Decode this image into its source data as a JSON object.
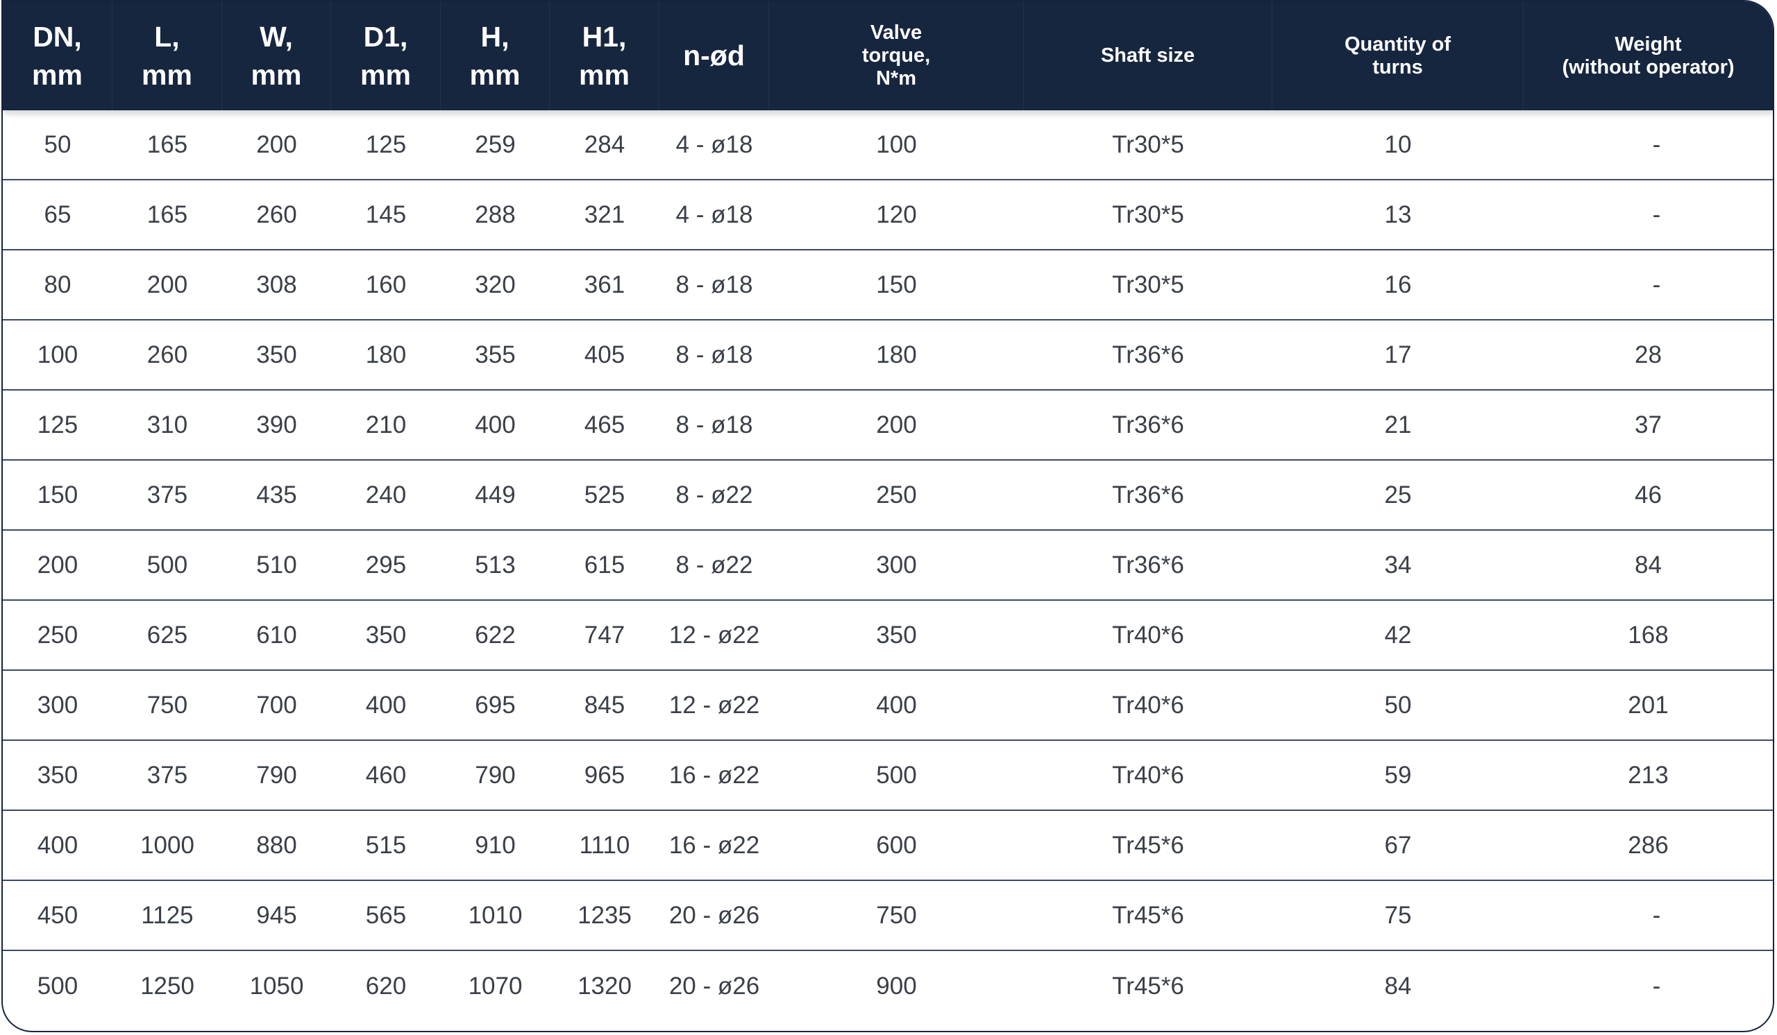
{
  "table": {
    "headers": [
      "DN,\nmm",
      "L,\nmm",
      "W,\nmm",
      "D1,\nmm",
      "H,\nmm",
      "H1,\nmm",
      "n-ød",
      "Valve\ntorque,\nN*m",
      "Shaft size",
      "Quantity of\nturns",
      "Weight\n(without operator)"
    ],
    "rows": [
      [
        "50",
        "165",
        "200",
        "125",
        "259",
        "284",
        "4 - ø18",
        "100",
        "Tr30*5",
        "10",
        "-"
      ],
      [
        "65",
        "165",
        "260",
        "145",
        "288",
        "321",
        "4 - ø18",
        "120",
        "Tr30*5",
        "13",
        "-"
      ],
      [
        "80",
        "200",
        "308",
        "160",
        "320",
        "361",
        "8 - ø18",
        "150",
        "Tr30*5",
        "16",
        "-"
      ],
      [
        "100",
        "260",
        "350",
        "180",
        "355",
        "405",
        "8 - ø18",
        "180",
        "Tr36*6",
        "17",
        "28"
      ],
      [
        "125",
        "310",
        "390",
        "210",
        "400",
        "465",
        "8 - ø18",
        "200",
        "Tr36*6",
        "21",
        "37"
      ],
      [
        "150",
        "375",
        "435",
        "240",
        "449",
        "525",
        "8 - ø22",
        "250",
        "Tr36*6",
        "25",
        "46"
      ],
      [
        "200",
        "500",
        "510",
        "295",
        "513",
        "615",
        "8 - ø22",
        "300",
        "Tr36*6",
        "34",
        "84"
      ],
      [
        "250",
        "625",
        "610",
        "350",
        "622",
        "747",
        "12 - ø22",
        "350",
        "Tr40*6",
        "42",
        "168"
      ],
      [
        "300",
        "750",
        "700",
        "400",
        "695",
        "845",
        "12 - ø22",
        "400",
        "Tr40*6",
        "50",
        "201"
      ],
      [
        "350",
        "375",
        "790",
        "460",
        "790",
        "965",
        "16 - ø22",
        "500",
        "Tr40*6",
        "59",
        "213"
      ],
      [
        "400",
        "1000",
        "880",
        "515",
        "910",
        "1110",
        "16 - ø22",
        "600",
        "Tr45*6",
        "67",
        "286"
      ],
      [
        "450",
        "1125",
        "945",
        "565",
        "1010",
        "1235",
        "20 - ø26",
        "750",
        "Tr45*6",
        "75",
        "-"
      ],
      [
        "500",
        "1250",
        "1050",
        "620",
        "1070",
        "1320",
        "20 - ø26",
        "900",
        "Tr45*6",
        "84",
        "-"
      ]
    ]
  },
  "colors": {
    "header_background": "#16263f",
    "header_text": "#ffffff",
    "row_border": "#3b4a64",
    "cell_text": "#3a3f48"
  }
}
